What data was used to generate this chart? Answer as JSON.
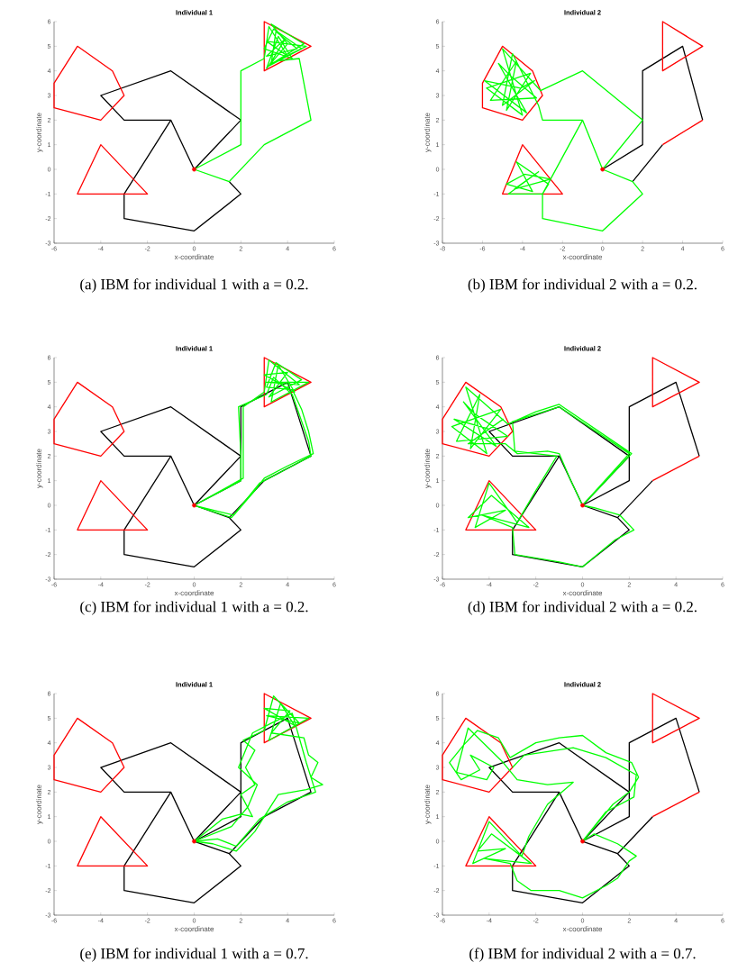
{
  "chart_data": [
    {
      "type": "line",
      "title": "Individual 1",
      "xlabel": "x-coordinate",
      "ylabel": "y-coordinate",
      "xlim": [
        -6,
        6
      ],
      "ylim": [
        -3,
        6
      ],
      "xticks": [
        -6,
        -4,
        -2,
        0,
        2,
        4,
        6
      ],
      "yticks": [
        -3,
        -2,
        -1,
        0,
        1,
        2,
        3,
        4,
        5,
        6
      ],
      "annotations": [
        "(a) IBM for individual 1 with a = 0.2."
      ],
      "series": [
        {
          "color": "#000000",
          "x": [
            0,
            2,
            -1,
            -4,
            -3,
            -1,
            0,
            -1,
            -3,
            -3,
            0,
            2,
            1.5
          ],
          "values": [
            0,
            2,
            4,
            3,
            2,
            2,
            0,
            2,
            -1,
            -2,
            -2.5,
            -1,
            -0.5
          ]
        },
        {
          "color": "#ff0000",
          "x": [
            -5,
            -3.5,
            -3,
            -4,
            -6,
            -6,
            -5,
            -3.5,
            null,
            -4,
            -2,
            -5,
            -4,
            -2,
            null,
            3,
            5,
            3,
            3,
            5
          ],
          "values": [
            5,
            4,
            3,
            2,
            2.5,
            3.5,
            5,
            4,
            null,
            1,
            -1,
            -1,
            1,
            -1,
            null,
            6,
            5,
            4,
            6,
            5
          ]
        },
        {
          "color": "#00ff00",
          "x": [
            0,
            2,
            2,
            3,
            3.2,
            4,
            3.1,
            4.8,
            3.3,
            3.5,
            4.4,
            3.1,
            3.9,
            3.2,
            4.6,
            3.4,
            3,
            4.2,
            3.6,
            3.1,
            4,
            3.3,
            4.7,
            3.5,
            4.5,
            5,
            3,
            1.5,
            0,
            2
          ],
          "values": [
            0,
            1,
            4,
            4.5,
            5.8,
            4.6,
            5.2,
            5,
            4.3,
            5.6,
            4.9,
            4.6,
            5.3,
            4.2,
            4.9,
            5.7,
            4.9,
            4.5,
            5.4,
            4.1,
            5.1,
            5.9,
            5.1,
            4.4,
            4.5,
            2,
            1,
            -0.5,
            0,
            1
          ]
        },
        {
          "type": "scatter",
          "marker": "circle",
          "color": "#ff0000",
          "x": [
            0
          ],
          "values": [
            0
          ]
        }
      ]
    },
    {
      "type": "line",
      "title": "Individual 2",
      "xlabel": "x-coordinate",
      "ylabel": "y-coordinate",
      "xlim": [
        -8,
        6
      ],
      "ylim": [
        -3,
        6
      ],
      "xticks": [
        -8,
        -6,
        -4,
        -2,
        0,
        2,
        4,
        6
      ],
      "yticks": [
        -3,
        -2,
        -1,
        0,
        1,
        2,
        3,
        4,
        5,
        6
      ],
      "annotations": [
        "(b) IBM for individual 2 with a = 0.2."
      ],
      "series": [
        {
          "color": "#000000",
          "x": [
            0,
            2,
            2,
            4,
            5,
            null,
            3,
            1.5
          ],
          "values": [
            0,
            1,
            4,
            5,
            2,
            null,
            1,
            -0.5
          ]
        },
        {
          "color": "#ff0000",
          "x": [
            -5,
            -3.5,
            -3,
            -4,
            -6,
            -6,
            -5,
            -3.5,
            null,
            -4,
            -2,
            -5,
            -4,
            -2,
            null,
            3,
            5,
            3,
            3,
            5,
            null,
            3,
            5
          ],
          "values": [
            5,
            4,
            3,
            2,
            2.5,
            3.5,
            5,
            4,
            null,
            1,
            -1,
            -1,
            1,
            -1,
            null,
            6,
            5,
            4,
            6,
            5,
            null,
            1,
            2
          ]
        },
        {
          "color": "#00ff00",
          "x": [
            0,
            2,
            -1,
            -3.1,
            -5,
            -4,
            -5.8,
            -3.6,
            -4.8,
            -4.3,
            -5.6,
            -3.3,
            -4.6,
            -5.2,
            -3.8,
            -5.9,
            -4.1,
            -3.4,
            -5,
            -4.5,
            -3.2,
            -3,
            -1,
            0,
            -1,
            -3,
            -2.7,
            -4.3,
            -3.5,
            -4.8,
            -3.9,
            -2.6,
            -4.4,
            -3.2,
            -4.7,
            -3,
            -3,
            0,
            2,
            1.5,
            0,
            2
          ],
          "values": [
            0,
            2,
            4,
            3.2,
            4.9,
            2.2,
            3.3,
            3.9,
            2.4,
            4.4,
            2.8,
            2.9,
            3.8,
            4.3,
            2.3,
            3.6,
            3.3,
            3.6,
            2.6,
            4.7,
            2.6,
            2,
            2,
            0,
            2,
            -1,
            -0.6,
            0.3,
            -0.9,
            -0.6,
            -0.2,
            -0.4,
            -0.8,
            -0.1,
            -1,
            -1,
            -2,
            -2.5,
            -1,
            -0.5,
            0,
            2
          ]
        },
        {
          "type": "scatter",
          "marker": "circle",
          "color": "#ff0000",
          "x": [
            0
          ],
          "values": [
            0
          ]
        }
      ]
    },
    {
      "type": "line",
      "title": "Individual 1",
      "xlabel": "x-coordinate",
      "ylabel": "y-coordinate",
      "xlim": [
        -6,
        6
      ],
      "ylim": [
        -3,
        6
      ],
      "xticks": [
        -6,
        -4,
        -2,
        0,
        2,
        4,
        6
      ],
      "yticks": [
        -3,
        -2,
        -1,
        0,
        1,
        2,
        3,
        4,
        5,
        6
      ],
      "annotations": [
        "(c) IBM for individual 1 with a = 0.2."
      ],
      "series": [
        {
          "color": "#000000",
          "x": [
            0,
            2,
            2,
            4,
            5,
            3,
            1.5,
            0,
            2,
            -1,
            -4,
            -3,
            -1,
            0,
            -1,
            -3,
            -3,
            0,
            2,
            1.5
          ],
          "values": [
            0,
            1,
            4,
            5,
            2,
            1,
            -0.5,
            0,
            2,
            4,
            3,
            2,
            2,
            0,
            2,
            -1,
            -2,
            -2.5,
            -1,
            -0.5
          ]
        },
        {
          "color": "#ff0000",
          "x": [
            -5,
            -3.5,
            -3,
            -4,
            -6,
            -6,
            -5,
            -3.5,
            null,
            -4,
            -2,
            -5,
            -4,
            -2,
            null,
            3,
            5,
            3,
            3,
            5
          ],
          "values": [
            5,
            4,
            3,
            2,
            2.5,
            3.5,
            5,
            4,
            null,
            1,
            -1,
            -1,
            1,
            -1,
            null,
            6,
            5,
            4,
            6,
            5
          ]
        },
        {
          "color": "#00ff00",
          "x": [
            0,
            2.1,
            2.1,
            3,
            3.2,
            4.5,
            3.1,
            4.9,
            3.3,
            3.6,
            4.3,
            3,
            4,
            3.2,
            4.6,
            3.5,
            3.1,
            4.2,
            4.6,
            4.9,
            5.1,
            4,
            3,
            2.6,
            1.7,
            0,
            2,
            2,
            1.9,
            3.1,
            3.4,
            4.2,
            4.9,
            5,
            3.8,
            2.8,
            1.6,
            0,
            2.1
          ],
          "values": [
            0,
            1.1,
            4,
            4.6,
            5.9,
            4.9,
            5,
            5,
            4.2,
            5.7,
            4.6,
            5.3,
            5.4,
            4.4,
            5.1,
            5.8,
            4.8,
            4.7,
            3.9,
            3,
            2.1,
            1.6,
            1.1,
            0.6,
            -0.4,
            0,
            1,
            2,
            4,
            4.5,
            5.2,
            4.5,
            2.6,
            2,
            1.4,
            0.9,
            -0.5,
            0,
            1.1
          ]
        },
        {
          "type": "scatter",
          "marker": "circle",
          "color": "#ff0000",
          "x": [
            0
          ],
          "values": [
            0
          ]
        }
      ]
    },
    {
      "type": "line",
      "title": "Individual 2",
      "xlabel": "x-coordinate",
      "ylabel": "y-coordinate",
      "xlim": [
        -6,
        6
      ],
      "ylim": [
        -3,
        6
      ],
      "xticks": [
        -6,
        -4,
        -2,
        0,
        2,
        4,
        6
      ],
      "yticks": [
        -3,
        -2,
        -1,
        0,
        1,
        2,
        3,
        4,
        5,
        6
      ],
      "annotations": [
        "(d) IBM for individual 2 with a = 0.2."
      ],
      "series": [
        {
          "color": "#000000",
          "x": [
            0,
            2,
            2,
            4,
            5,
            null,
            3,
            1.5,
            0,
            2,
            -1,
            -4,
            -3,
            -1,
            0,
            -1,
            -3,
            -3,
            0,
            2,
            1.5
          ],
          "values": [
            0,
            1,
            4,
            5,
            2,
            null,
            1,
            -0.5,
            0,
            2,
            4,
            3,
            2,
            2,
            0,
            2,
            -1,
            -2,
            -2.5,
            -1,
            -0.5
          ]
        },
        {
          "color": "#ff0000",
          "x": [
            -5,
            -3.5,
            -3,
            -4,
            -6,
            -6,
            -5,
            -3.5,
            null,
            -4,
            -2,
            -5,
            -4,
            -2,
            null,
            3,
            5,
            3,
            3,
            5,
            null,
            3,
            5
          ],
          "values": [
            5,
            4,
            3,
            2,
            2.5,
            3.5,
            5,
            4,
            null,
            1,
            -1,
            -1,
            1,
            -1,
            null,
            6,
            5,
            4,
            6,
            5,
            null,
            1,
            2
          ]
        },
        {
          "color": "#00ff00",
          "x": [
            0,
            2.1,
            -1,
            -2,
            -3.2,
            -5,
            -4.1,
            -5.6,
            -3.5,
            -4.8,
            -4.4,
            -5.4,
            -3.2,
            -4.6,
            -5.1,
            -3.7,
            -5.5,
            -4,
            -3.4,
            -4.9,
            -3.3,
            -2.8,
            -1.5,
            -1,
            -0.5,
            0,
            2,
            -1,
            -3,
            -2.9,
            -1.1,
            -2,
            -2.8,
            -4,
            -4.6,
            -3.3,
            -4.9,
            -3.9,
            -2.3,
            -4.3,
            -3,
            -2.9,
            -1,
            0,
            1.4,
            2.2,
            1.6,
            0.5,
            0,
            2.1
          ],
          "values": [
            0,
            2.1,
            4.1,
            3.8,
            3.3,
            4.8,
            2.1,
            3.2,
            3.9,
            2.3,
            4.5,
            2.6,
            2.8,
            3.7,
            4.2,
            2.4,
            3.5,
            3.1,
            3.5,
            2.5,
            2.5,
            2.1,
            2.2,
            2.1,
            1,
            0,
            2.1,
            4,
            3.4,
            2.2,
            2,
            0.6,
            -0.7,
            0.9,
            -0.9,
            -0.2,
            -0.5,
            0.4,
            -0.9,
            -0.4,
            -0.9,
            -2,
            -2.3,
            -2.5,
            -1.4,
            -1,
            -0.4,
            -0.1,
            0,
            2.1
          ]
        },
        {
          "type": "scatter",
          "marker": "circle",
          "color": "#ff0000",
          "x": [
            0
          ],
          "values": [
            0
          ]
        }
      ]
    },
    {
      "type": "line",
      "title": "Individual 1",
      "xlabel": "x-coordinate",
      "ylabel": "y-coordinate",
      "xlim": [
        -6,
        6
      ],
      "ylim": [
        -3,
        6
      ],
      "xticks": [
        -6,
        -4,
        -2,
        0,
        2,
        4,
        6
      ],
      "yticks": [
        -3,
        -2,
        -1,
        0,
        1,
        2,
        3,
        4,
        5,
        6
      ],
      "annotations": [
        "(e) IBM for individual 1 with a = 0.7."
      ],
      "series": [
        {
          "color": "#000000",
          "x": [
            0,
            2,
            2,
            4,
            5,
            3,
            1.5,
            0,
            2,
            -1,
            -4,
            -3,
            -1,
            0,
            -1,
            -3,
            -3,
            0,
            2,
            1.5
          ],
          "values": [
            0,
            1,
            4,
            5,
            2,
            1,
            -0.5,
            0,
            2,
            4,
            3,
            2,
            2,
            0,
            2,
            -1,
            -2,
            -2.5,
            -1,
            -0.5
          ]
        },
        {
          "color": "#ff0000",
          "x": [
            -5,
            -3.5,
            -3,
            -4,
            -6,
            -6,
            -5,
            -3.5,
            null,
            -4,
            -2,
            -5,
            -4,
            -2,
            null,
            3,
            5,
            3,
            3,
            5
          ],
          "values": [
            5,
            4,
            3,
            2,
            2.5,
            3.5,
            5,
            4,
            null,
            1,
            -1,
            -1,
            1,
            -1,
            null,
            6,
            5,
            4,
            6,
            5
          ]
        },
        {
          "color": "#00ff00",
          "x": [
            0,
            1.2,
            2,
            2.5,
            2,
            2.6,
            2.2,
            2.6,
            2.1,
            3,
            3.4,
            4.5,
            3.1,
            4.9,
            3.2,
            3.7,
            4.3,
            3,
            4.1,
            3.3,
            4.7,
            4.9,
            5.3,
            5,
            5.5,
            4.8,
            3.6,
            3,
            2.6,
            1.8,
            0.8,
            0,
            1.6,
            2.3,
            2.7,
            1.9,
            2.5,
            3.3,
            4.2,
            4.8,
            5.2,
            4,
            2.8,
            1.8,
            1,
            0,
            1.2
          ],
          "values": [
            0,
            0.9,
            1.1,
            1,
            1.9,
            2.3,
            3,
            3.7,
            4.1,
            4.5,
            5.9,
            4.8,
            5.1,
            5,
            4.1,
            5.6,
            4.7,
            5.4,
            5.3,
            4.4,
            4.2,
            3.5,
            3.2,
            2.6,
            2.3,
            2.1,
            1.9,
            1,
            0.4,
            -0.4,
            -0.1,
            0,
            0.6,
            1.4,
            2.3,
            3,
            4.4,
            4.8,
            5.2,
            3.2,
            2,
            1.6,
            0.9,
            -0.2,
            0.1,
            0,
            0.9
          ]
        },
        {
          "type": "scatter",
          "marker": "circle",
          "color": "#ff0000",
          "x": [
            0
          ],
          "values": [
            0
          ]
        }
      ]
    },
    {
      "type": "line",
      "title": "Individual 2",
      "xlabel": "x-coordinate",
      "ylabel": "y-coordinate",
      "xlim": [
        -6,
        6
      ],
      "ylim": [
        -3,
        6
      ],
      "xticks": [
        -6,
        -4,
        -2,
        0,
        2,
        4,
        6
      ],
      "yticks": [
        -3,
        -2,
        -1,
        0,
        1,
        2,
        3,
        4,
        5,
        6
      ],
      "annotations": [
        "(f) IBM for individual 2 with a = 0.7."
      ],
      "series": [
        {
          "color": "#000000",
          "x": [
            0,
            2,
            2,
            4,
            5,
            null,
            3,
            1.5,
            0,
            2,
            -1,
            -4,
            -3,
            -1,
            0,
            -1,
            -3,
            -3,
            0,
            2,
            1.5
          ],
          "values": [
            0,
            1,
            4,
            5,
            2,
            null,
            1,
            -0.5,
            0,
            2,
            4,
            3,
            2,
            2,
            0,
            2,
            -1,
            -2,
            -2.5,
            -1,
            -0.5
          ]
        },
        {
          "color": "#ff0000",
          "x": [
            -5,
            -3.5,
            -3,
            -4,
            -6,
            -6,
            -5,
            -3.5,
            null,
            -4,
            -2,
            -5,
            -4,
            -2,
            null,
            3,
            5,
            3,
            3,
            5,
            null,
            3,
            5
          ],
          "values": [
            5,
            4,
            3,
            2,
            2.5,
            3.5,
            5,
            4,
            null,
            1,
            -1,
            -1,
            1,
            -1,
            null,
            6,
            5,
            4,
            6,
            5,
            null,
            1,
            2
          ]
        },
        {
          "color": "#00ff00",
          "x": [
            0,
            1.3,
            2,
            2.4,
            2.1,
            1,
            0,
            -1,
            -2,
            -3.1,
            -3.6,
            -4.5,
            -5.1,
            -5.7,
            -5.2,
            -4.4,
            -4.8,
            -3.8,
            -4.1,
            -5.4,
            -4.9,
            -3.4,
            -2.8,
            -1.5,
            -0.4,
            -1.5,
            -2.3,
            -2.6,
            -4,
            -4.7,
            -3.3,
            -4.5,
            -3.9,
            -2.2,
            -4.2,
            -3.1,
            -2.8,
            -2.2,
            -1,
            0,
            1,
            1.5,
            2,
            2.3,
            1.5,
            0.5,
            0,
            1,
            2.2,
            2.3,
            1,
            -0.4,
            -2.5,
            -3
          ],
          "values": [
            0,
            1.5,
            2,
            2.6,
            3.2,
            3.6,
            4.3,
            4.2,
            4,
            3.4,
            4.2,
            4.5,
            3.9,
            3.2,
            2.5,
            2.9,
            3.5,
            3,
            2.5,
            2.8,
            4.6,
            3.2,
            2.5,
            2.3,
            2.4,
            1.5,
            0.2,
            -0.6,
            0.8,
            -0.9,
            -0.3,
            -0.4,
            0.3,
            -0.9,
            -0.7,
            -0.9,
            -1.6,
            -2,
            -2,
            -2.3,
            -1.8,
            -1.5,
            -0.8,
            -0.6,
            -0.1,
            0.3,
            0,
            1.2,
            1.8,
            2.7,
            3.4,
            3.8,
            3.5,
            3
          ]
        },
        {
          "type": "scatter",
          "marker": "circle",
          "color": "#ff0000",
          "x": [
            0
          ],
          "values": [
            0
          ]
        }
      ]
    }
  ]
}
